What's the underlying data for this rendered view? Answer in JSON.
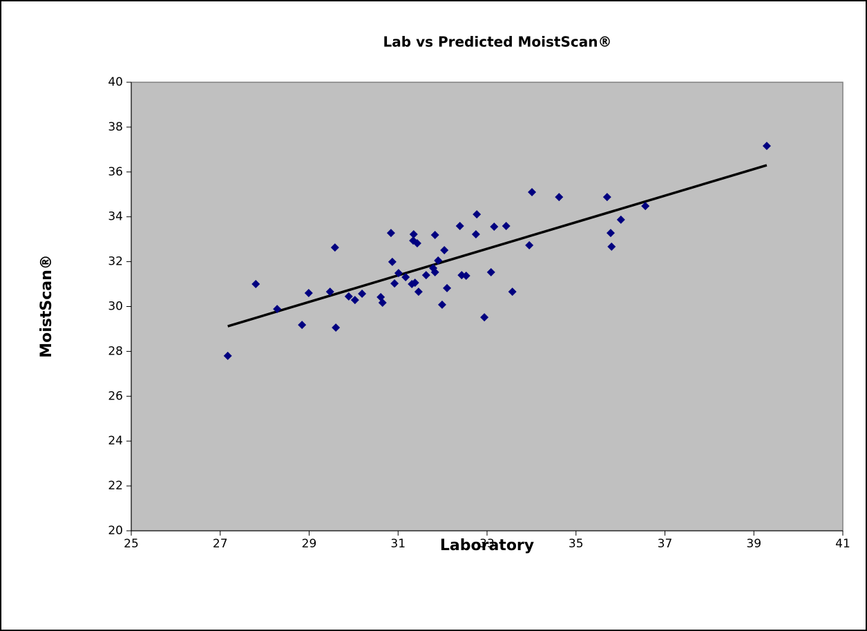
{
  "chart_data": {
    "type": "scatter",
    "title": "Lab vs Predicted MoistScan®",
    "x_label": "Laboratory",
    "y_label": "MoistScan®",
    "xlim": [
      25,
      41
    ],
    "xticks": [
      25,
      27,
      29,
      31,
      33,
      35,
      37,
      39,
      41
    ],
    "ylim": [
      20,
      40
    ],
    "yticks": [
      20,
      22,
      24,
      26,
      28,
      30,
      32,
      34,
      36,
      38,
      40
    ],
    "grid": false,
    "background": "#c0c0c0",
    "series": [
      {
        "color": "#000080",
        "x": [
          27.17,
          27.8,
          28.28,
          28.84,
          28.99,
          29.47,
          29.58,
          29.6,
          29.89,
          30.03,
          30.19,
          30.61,
          30.65,
          30.84,
          30.87,
          30.92,
          31.01,
          31.17,
          31.31,
          31.34,
          31.35,
          31.38,
          31.43,
          31.46,
          31.63,
          31.79,
          31.83,
          31.83,
          31.9,
          31.99,
          32.04,
          32.1,
          32.39,
          32.43,
          32.53,
          32.75,
          32.77,
          32.94,
          33.09,
          33.16,
          33.43,
          33.57,
          33.95,
          34.01,
          34.62,
          35.7,
          35.78,
          35.8,
          36.01,
          36.56,
          39.29
        ],
        "values": [
          27.8,
          31.0,
          29.89,
          29.18,
          30.6,
          30.66,
          32.63,
          29.06,
          30.45,
          30.29,
          30.57,
          30.42,
          30.17,
          33.28,
          31.99,
          31.03,
          31.49,
          31.31,
          31.0,
          32.94,
          33.22,
          31.06,
          32.82,
          30.66,
          31.4,
          31.71,
          33.19,
          31.53,
          32.05,
          30.08,
          32.51,
          30.82,
          33.59,
          31.4,
          31.37,
          33.22,
          34.11,
          29.52,
          31.53,
          33.56,
          33.59,
          30.66,
          32.73,
          35.1,
          34.88,
          34.88,
          33.28,
          32.67,
          33.87,
          34.48,
          37.16
        ]
      }
    ],
    "trendline": {
      "color": "#000000",
      "x": [
        27.17,
        39.29
      ],
      "values": [
        29.12,
        36.3
      ]
    }
  }
}
